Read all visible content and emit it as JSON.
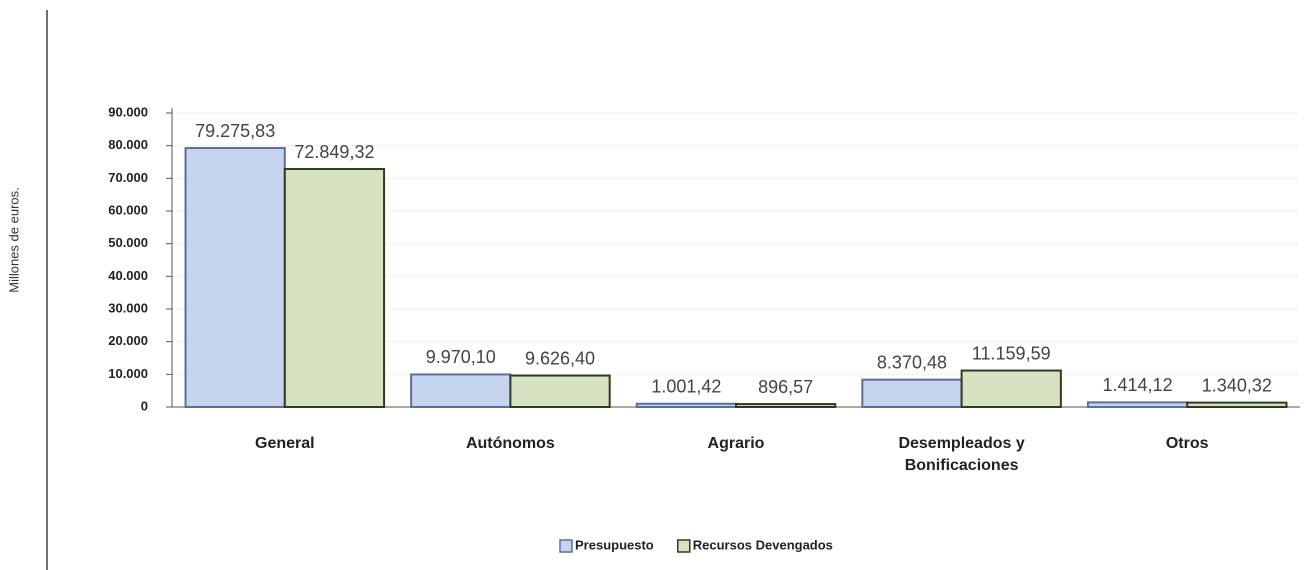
{
  "chart_data": {
    "type": "bar",
    "y_label": "Millones de euros.",
    "categories": [
      "General",
      "Autónomos",
      "Agrario",
      "Desempleados y\nBonificaciones",
      "Otros"
    ],
    "series": [
      {
        "name": "Presupuesto",
        "color": "#c6d4ee",
        "values": [
          79275.83,
          9970.1,
          1001.42,
          8370.48,
          1414.12
        ],
        "value_labels": [
          "79.275,83",
          "9.970,10",
          "1.001,42",
          "8.370,48",
          "1.414,12"
        ]
      },
      {
        "name": "Recursos Devengados",
        "color": "#d8e2c2",
        "values": [
          72849.32,
          9626.4,
          896.57,
          11159.59,
          1340.32
        ],
        "value_labels": [
          "72.849,32",
          "9.626,40",
          "896,57",
          "11.159,59",
          "1.340,32"
        ]
      }
    ],
    "ylim": [
      0,
      90000
    ],
    "yticks": [
      0,
      {
        "value": 10000,
        "label": "10.000"
      },
      {
        "value": 20000,
        "label": "20.000"
      },
      {
        "value": 30000,
        "label": "30.000"
      },
      {
        "value": 40000,
        "label": "40.000"
      },
      {
        "value": 50000,
        "label": "50.000"
      },
      {
        "value": 60000,
        "label": "60.000"
      },
      {
        "value": 70000,
        "label": "70.000"
      },
      {
        "value": 80000,
        "label": "80.000"
      },
      {
        "value": 90000,
        "label": "90.000"
      }
    ],
    "grid": true,
    "legend": "bottom"
  }
}
